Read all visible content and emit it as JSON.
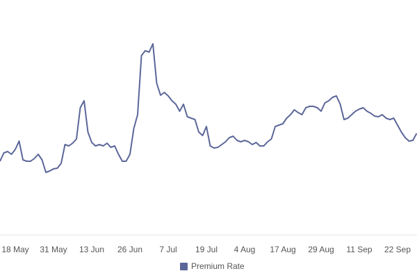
{
  "chart_data": {
    "type": "line",
    "categories": [
      null,
      null,
      null,
      null,
      "18 May",
      null,
      null,
      null,
      null,
      null,
      null,
      null,
      null,
      null,
      "31 May",
      null,
      null,
      null,
      null,
      null,
      null,
      null,
      null,
      null,
      "13 Jun",
      null,
      null,
      null,
      null,
      null,
      null,
      null,
      null,
      null,
      "26 Jun",
      null,
      null,
      null,
      null,
      null,
      null,
      null,
      null,
      null,
      "7 Jul",
      null,
      null,
      null,
      null,
      null,
      null,
      null,
      null,
      null,
      "19 Jul",
      null,
      null,
      null,
      null,
      null,
      null,
      null,
      null,
      null,
      "4 Aug",
      null,
      null,
      null,
      null,
      null,
      null,
      null,
      null,
      null,
      "17 Aug",
      null,
      null,
      null,
      null,
      null,
      null,
      null,
      null,
      null,
      "29 Aug",
      null,
      null,
      null,
      null,
      null,
      null,
      null,
      null,
      null,
      "11 Sep",
      null,
      null,
      null,
      null,
      null,
      null,
      null,
      null,
      null,
      "22 Sep",
      null,
      null,
      null,
      null,
      null
    ],
    "series": [
      {
        "name": "Premium Rate",
        "color": "#5b6699",
        "values": [
          108,
          120,
          122,
          118,
          125,
          137,
          110,
          108,
          108,
          112,
          118,
          110,
          92,
          94,
          97,
          98,
          105,
          132,
          130,
          134,
          140,
          185,
          195,
          150,
          135,
          130,
          132,
          130,
          134,
          128,
          130,
          118,
          108,
          108,
          118,
          155,
          175,
          260,
          267,
          265,
          277,
          220,
          203,
          207,
          202,
          195,
          190,
          180,
          190,
          172,
          170,
          168,
          150,
          145,
          158,
          130,
          127,
          128,
          132,
          136,
          142,
          144,
          138,
          136,
          138,
          136,
          132,
          135,
          130,
          130,
          136,
          140,
          158,
          160,
          162,
          170,
          175,
          182,
          178,
          175,
          185,
          187,
          187,
          185,
          180,
          192,
          195,
          200,
          202,
          190,
          168,
          170,
          175,
          180,
          183,
          185,
          180,
          177,
          173,
          172,
          175,
          170,
          168,
          170,
          160,
          150,
          142,
          137,
          138,
          148
        ]
      }
    ],
    "ylim": [
      0,
      320
    ],
    "legend": "bottom"
  }
}
